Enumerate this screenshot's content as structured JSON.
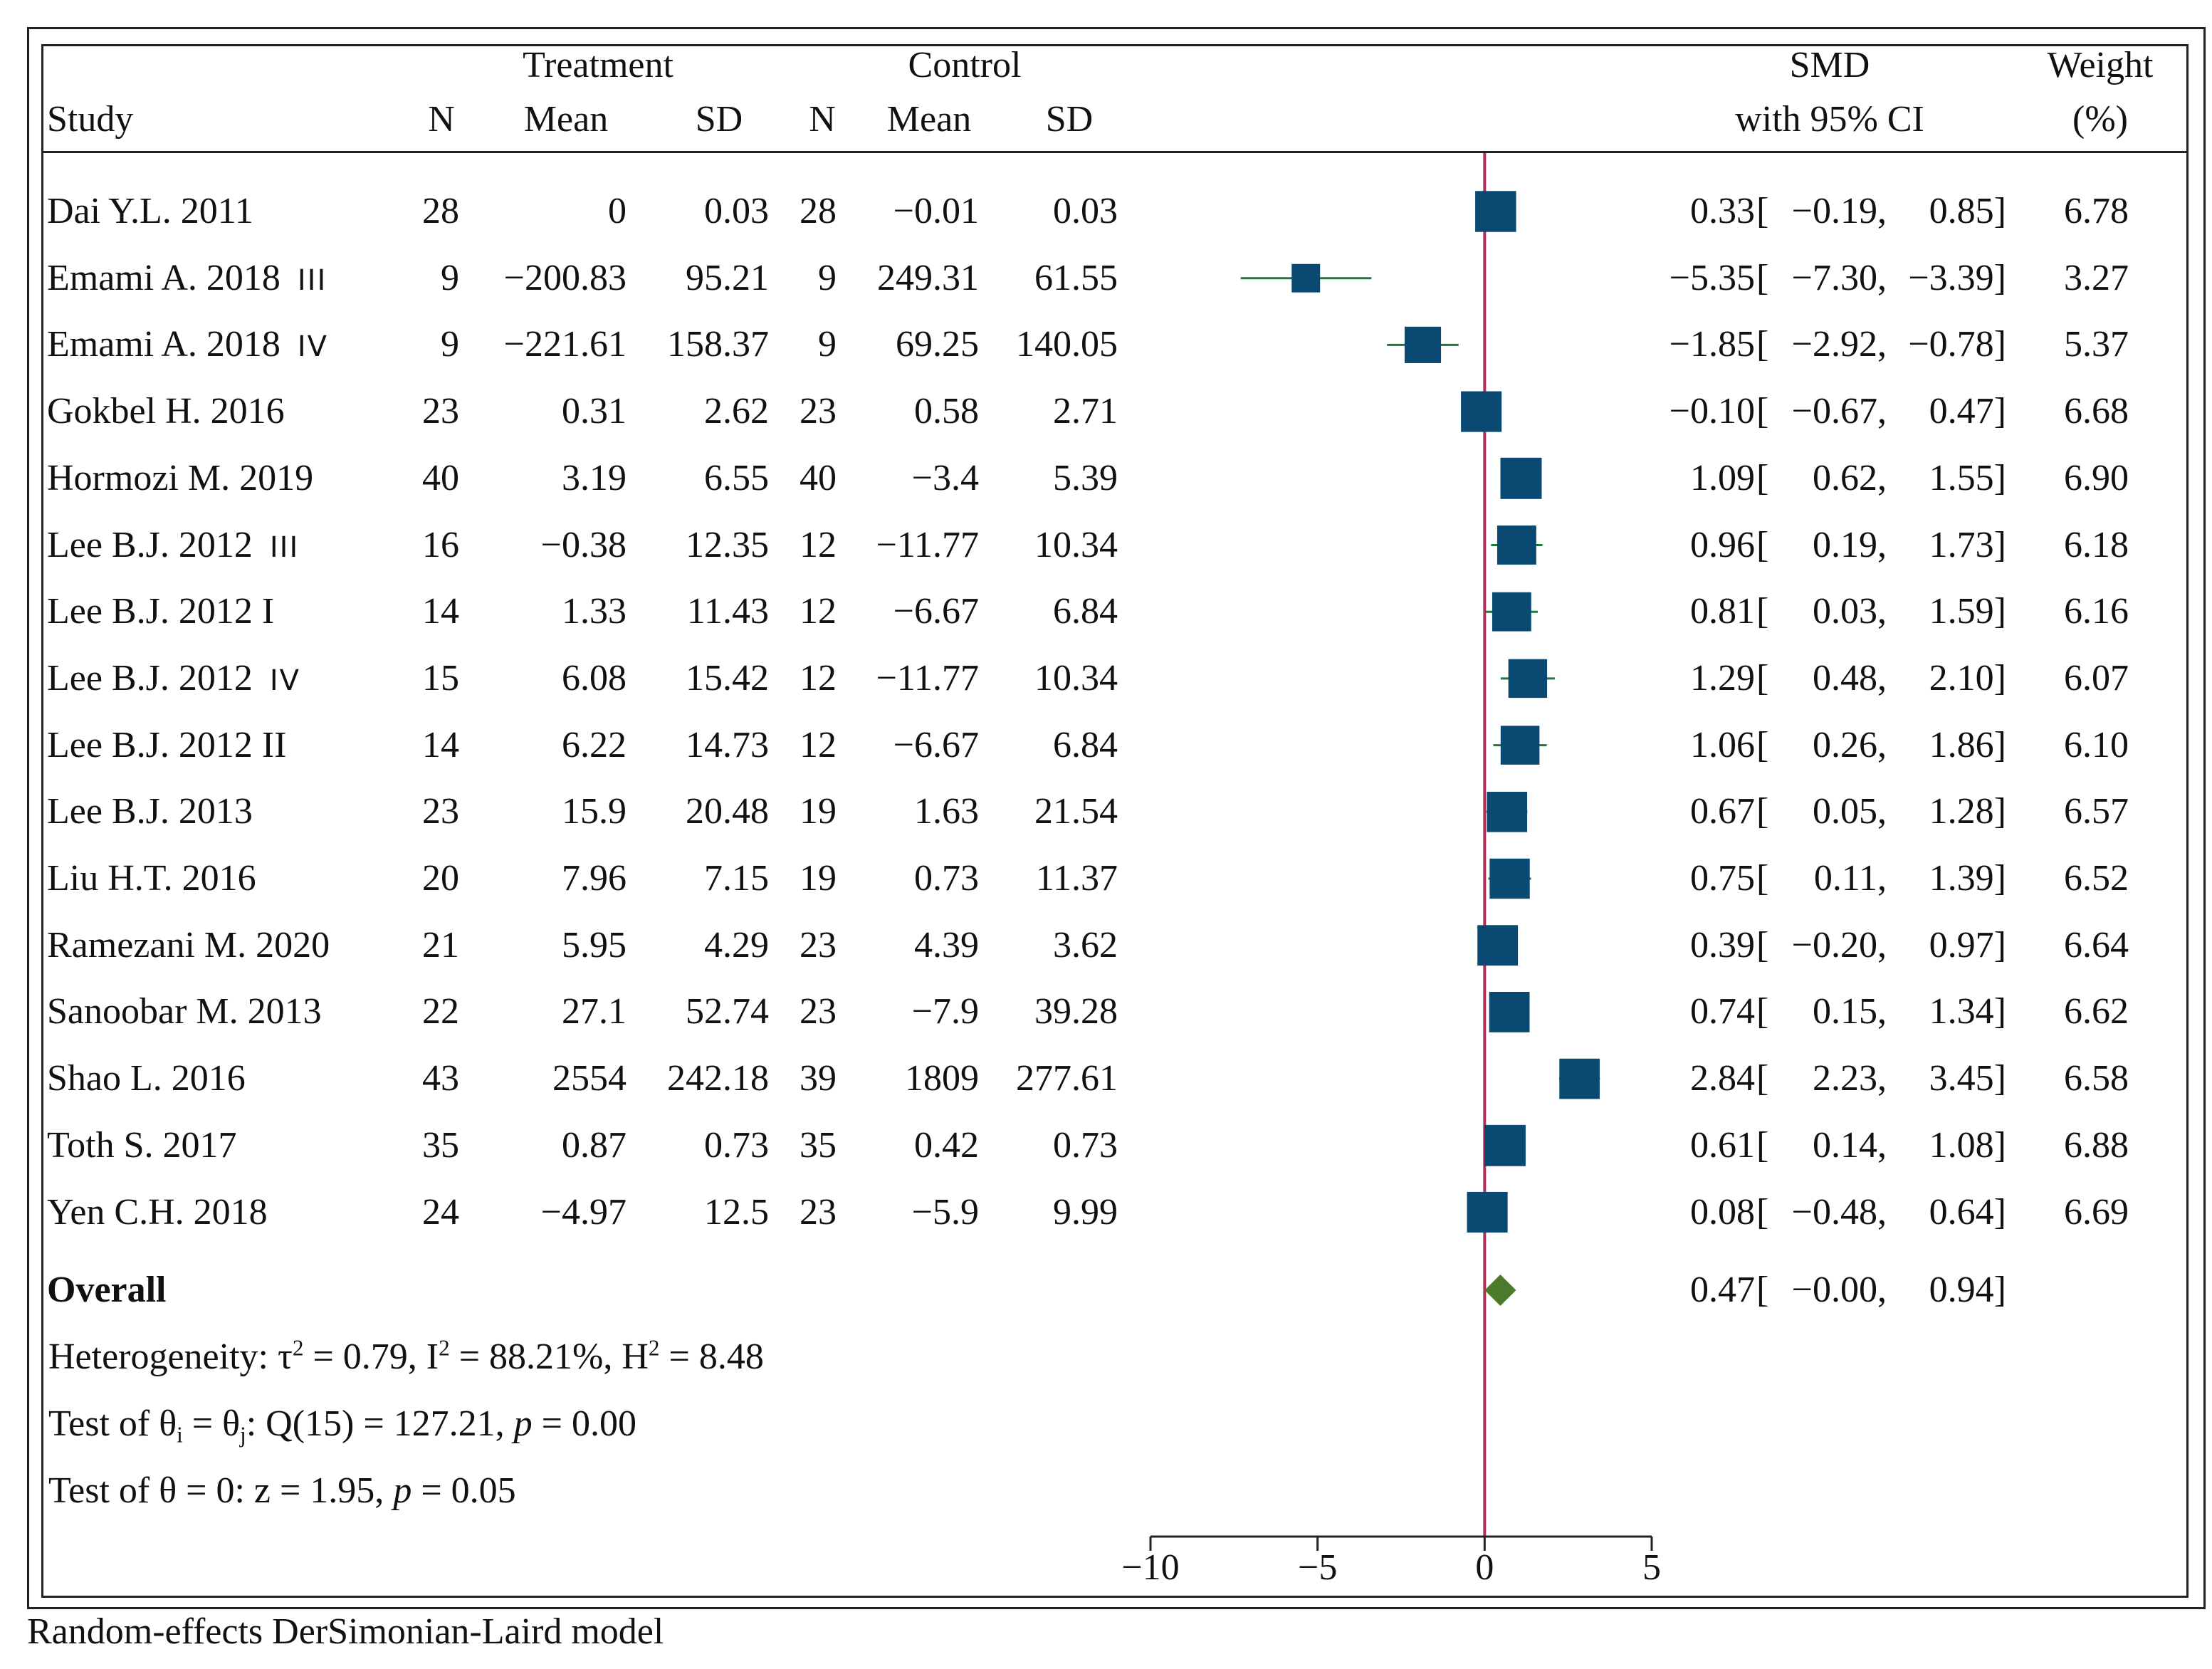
{
  "header": {
    "treatment_label": "Treatment",
    "control_label": "Control",
    "study_label": "Study",
    "n_label": "N",
    "mean_label": "Mean",
    "sd_label": "SD",
    "smd_label": "SMD",
    "ci_label": "with 95% CI",
    "weight_label": "Weight",
    "weight_unit": "(%)"
  },
  "chart_data": {
    "type": "forest",
    "title": "",
    "xlabel": "",
    "xlim": [
      -10,
      5
    ],
    "xticks": [
      -10,
      -5,
      0,
      5
    ],
    "xtick_labels": [
      "−10",
      "−5",
      "0",
      "5"
    ],
    "reference_line": 0,
    "rows": [
      {
        "study": "Dai Y.L. 2011",
        "tag": "",
        "t_n": "28",
        "t_mean": "0",
        "t_sd": "0.03",
        "c_n": "28",
        "c_mean": "−0.01",
        "c_sd": "0.03",
        "smd": 0.33,
        "lo": -0.19,
        "hi": 0.85,
        "smd_txt": "0.33",
        "lo_txt": "−0.19,",
        "hi_txt": "0.85]",
        "weight": 6.78,
        "weight_txt": "6.78"
      },
      {
        "study": "Emami A. 2018",
        "tag": "III",
        "t_n": "9",
        "t_mean": "−200.83",
        "t_sd": "95.21",
        "c_n": "9",
        "c_mean": "249.31",
        "c_sd": "61.55",
        "smd": -5.35,
        "lo": -7.3,
        "hi": -3.39,
        "smd_txt": "−5.35",
        "lo_txt": "−7.30,",
        "hi_txt": "−3.39]",
        "weight": 3.27,
        "weight_txt": "3.27"
      },
      {
        "study": "Emami A. 2018",
        "tag": "IV",
        "t_n": "9",
        "t_mean": "−221.61",
        "t_sd": "158.37",
        "c_n": "9",
        "c_mean": "69.25",
        "c_sd": "140.05",
        "smd": -1.85,
        "lo": -2.92,
        "hi": -0.78,
        "smd_txt": "−1.85",
        "lo_txt": "−2.92,",
        "hi_txt": "−0.78]",
        "weight": 5.37,
        "weight_txt": "5.37"
      },
      {
        "study": "Gokbel H. 2016",
        "tag": "",
        "t_n": "23",
        "t_mean": "0.31",
        "t_sd": "2.62",
        "c_n": "23",
        "c_mean": "0.58",
        "c_sd": "2.71",
        "smd": -0.1,
        "lo": -0.67,
        "hi": 0.47,
        "smd_txt": "−0.10",
        "lo_txt": "−0.67,",
        "hi_txt": "0.47]",
        "weight": 6.68,
        "weight_txt": "6.68"
      },
      {
        "study": "Hormozi M. 2019",
        "tag": "",
        "t_n": "40",
        "t_mean": "3.19",
        "t_sd": "6.55",
        "c_n": "40",
        "c_mean": "−3.4",
        "c_sd": "5.39",
        "smd": 1.09,
        "lo": 0.62,
        "hi": 1.55,
        "smd_txt": "1.09",
        "lo_txt": "0.62,",
        "hi_txt": "1.55]",
        "weight": 6.9,
        "weight_txt": "6.90"
      },
      {
        "study": "Lee B.J. 2012",
        "tag": "III",
        "t_n": "16",
        "t_mean": "−0.38",
        "t_sd": "12.35",
        "c_n": "12",
        "c_mean": "−11.77",
        "c_sd": "10.34",
        "smd": 0.96,
        "lo": 0.19,
        "hi": 1.73,
        "smd_txt": "0.96",
        "lo_txt": "0.19,",
        "hi_txt": "1.73]",
        "weight": 6.18,
        "weight_txt": "6.18"
      },
      {
        "study": "Lee B.J. 2012 I",
        "tag": "",
        "t_n": "14",
        "t_mean": "1.33",
        "t_sd": "11.43",
        "c_n": "12",
        "c_mean": "−6.67",
        "c_sd": "6.84",
        "smd": 0.81,
        "lo": 0.03,
        "hi": 1.59,
        "smd_txt": "0.81",
        "lo_txt": "0.03,",
        "hi_txt": "1.59]",
        "weight": 6.16,
        "weight_txt": "6.16"
      },
      {
        "study": "Lee B.J. 2012",
        "tag": "IV",
        "t_n": "15",
        "t_mean": "6.08",
        "t_sd": "15.42",
        "c_n": "12",
        "c_mean": "−11.77",
        "c_sd": "10.34",
        "smd": 1.29,
        "lo": 0.48,
        "hi": 2.1,
        "smd_txt": "1.29",
        "lo_txt": "0.48,",
        "hi_txt": "2.10]",
        "weight": 6.07,
        "weight_txt": "6.07"
      },
      {
        "study": "Lee B.J. 2012 II",
        "tag": "",
        "t_n": "14",
        "t_mean": "6.22",
        "t_sd": "14.73",
        "c_n": "12",
        "c_mean": "−6.67",
        "c_sd": "6.84",
        "smd": 1.06,
        "lo": 0.26,
        "hi": 1.86,
        "smd_txt": "1.06",
        "lo_txt": "0.26,",
        "hi_txt": "1.86]",
        "weight": 6.1,
        "weight_txt": "6.10"
      },
      {
        "study": "Lee B.J. 2013",
        "tag": "",
        "t_n": "23",
        "t_mean": "15.9",
        "t_sd": "20.48",
        "c_n": "19",
        "c_mean": "1.63",
        "c_sd": "21.54",
        "smd": 0.67,
        "lo": 0.05,
        "hi": 1.28,
        "smd_txt": "0.67",
        "lo_txt": "0.05,",
        "hi_txt": "1.28]",
        "weight": 6.57,
        "weight_txt": "6.57"
      },
      {
        "study": "Liu H.T. 2016",
        "tag": "",
        "t_n": "20",
        "t_mean": "7.96",
        "t_sd": "7.15",
        "c_n": "19",
        "c_mean": "0.73",
        "c_sd": "11.37",
        "smd": 0.75,
        "lo": 0.11,
        "hi": 1.39,
        "smd_txt": "0.75",
        "lo_txt": "0.11,",
        "hi_txt": "1.39]",
        "weight": 6.52,
        "weight_txt": "6.52"
      },
      {
        "study": "Ramezani M. 2020",
        "tag": "",
        "t_n": "21",
        "t_mean": "5.95",
        "t_sd": "4.29",
        "c_n": "23",
        "c_mean": "4.39",
        "c_sd": "3.62",
        "smd": 0.39,
        "lo": -0.2,
        "hi": 0.97,
        "smd_txt": "0.39",
        "lo_txt": "−0.20,",
        "hi_txt": "0.97]",
        "weight": 6.64,
        "weight_txt": "6.64"
      },
      {
        "study": "Sanoobar M. 2013",
        "tag": "",
        "t_n": "22",
        "t_mean": "27.1",
        "t_sd": "52.74",
        "c_n": "23",
        "c_mean": "−7.9",
        "c_sd": "39.28",
        "smd": 0.74,
        "lo": 0.15,
        "hi": 1.34,
        "smd_txt": "0.74",
        "lo_txt": "0.15,",
        "hi_txt": "1.34]",
        "weight": 6.62,
        "weight_txt": "6.62"
      },
      {
        "study": "Shao L. 2016",
        "tag": "",
        "t_n": "43",
        "t_mean": "2554",
        "t_sd": "242.18",
        "c_n": "39",
        "c_mean": "1809",
        "c_sd": "277.61",
        "smd": 2.84,
        "lo": 2.23,
        "hi": 3.45,
        "smd_txt": "2.84",
        "lo_txt": "2.23,",
        "hi_txt": "3.45]",
        "weight": 6.58,
        "weight_txt": "6.58"
      },
      {
        "study": "Toth S. 2017",
        "tag": "",
        "t_n": "35",
        "t_mean": "0.87",
        "t_sd": "0.73",
        "c_n": "35",
        "c_mean": "0.42",
        "c_sd": "0.73",
        "smd": 0.61,
        "lo": 0.14,
        "hi": 1.08,
        "smd_txt": "0.61",
        "lo_txt": "0.14,",
        "hi_txt": "1.08]",
        "weight": 6.88,
        "weight_txt": "6.88"
      },
      {
        "study": "Yen C.H. 2018",
        "tag": "",
        "t_n": "24",
        "t_mean": "−4.97",
        "t_sd": "12.5",
        "c_n": "23",
        "c_mean": "−5.9",
        "c_sd": "9.99",
        "smd": 0.08,
        "lo": -0.48,
        "hi": 0.64,
        "smd_txt": "0.08",
        "lo_txt": "−0.48,",
        "hi_txt": "0.64]",
        "weight": 6.69,
        "weight_txt": "6.69"
      }
    ],
    "overall": {
      "label": "Overall",
      "smd": 0.47,
      "lo": -0.0,
      "hi": 0.94,
      "smd_txt": "0.47",
      "lo_txt": "−0.00,",
      "hi_txt": "0.94]"
    },
    "colors": {
      "box": "#0a4a72",
      "ci_line": "#1a7a3a",
      "diamond": "#4a7a2a",
      "ref_line": "#b0305a",
      "axis": "#222222"
    }
  },
  "stats": {
    "heterogeneity": {
      "prefix": "Heterogeneity: τ",
      "sup1": "2",
      "p2": " = 0.79, I",
      "sup2": "2",
      "p3": " = 88.21%, H",
      "sup3": "2",
      "p4": " = 8.48"
    },
    "test1": {
      "prefix": "Test of θ",
      "sub1": "i",
      "p2": " = θ",
      "sub2": "j",
      "p3": ": Q(15) = 127.21, ",
      "pvar": "p",
      "p4": " = 0.00"
    },
    "test2": {
      "prefix": "Test of θ = 0: z = 1.95, ",
      "pvar": "p",
      "p4": " = 0.05"
    }
  },
  "footnote": "Random-effects DerSimonian-Laird model"
}
